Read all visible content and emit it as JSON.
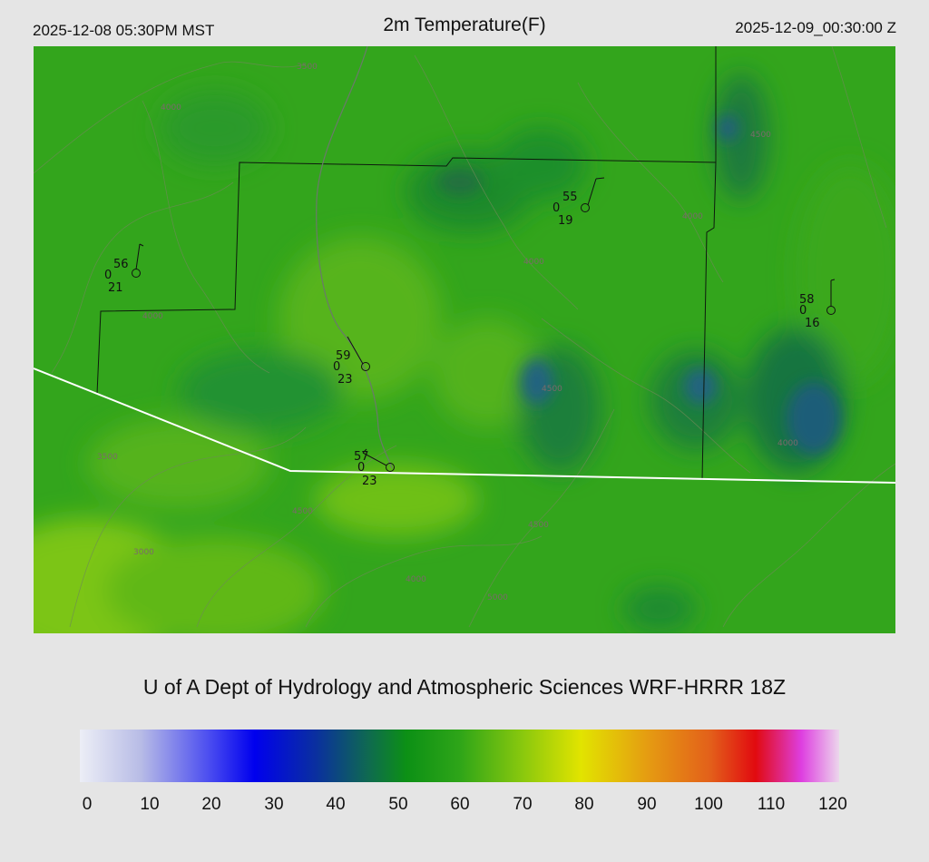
{
  "header": {
    "local_time": "2025-12-08 05:30PM MST",
    "title": "2m Temperature(F)",
    "utc_time": "2025-12-09_00:30:00 Z"
  },
  "credit": "U of A Dept of Hydrology and Atmospheric Sciences WRF-HRRR 18Z",
  "colorbar": {
    "ticks": [
      "0",
      "10",
      "20",
      "30",
      "40",
      "50",
      "60",
      "70",
      "80",
      "90",
      "100",
      "110",
      "120"
    ]
  },
  "stations": [
    {
      "temp": "56",
      "cloud": "0",
      "dewpoint": "21"
    },
    {
      "temp": "55",
      "cloud": "0",
      "dewpoint": "19"
    },
    {
      "temp": "58",
      "cloud": "0",
      "dewpoint": "16"
    },
    {
      "temp": "59",
      "cloud": "0",
      "dewpoint": "23"
    },
    {
      "temp": "57",
      "cloud": "0",
      "dewpoint": "23"
    }
  ],
  "contour_labels": [
    "3500",
    "4000",
    "4500",
    "5000",
    "3000"
  ]
}
